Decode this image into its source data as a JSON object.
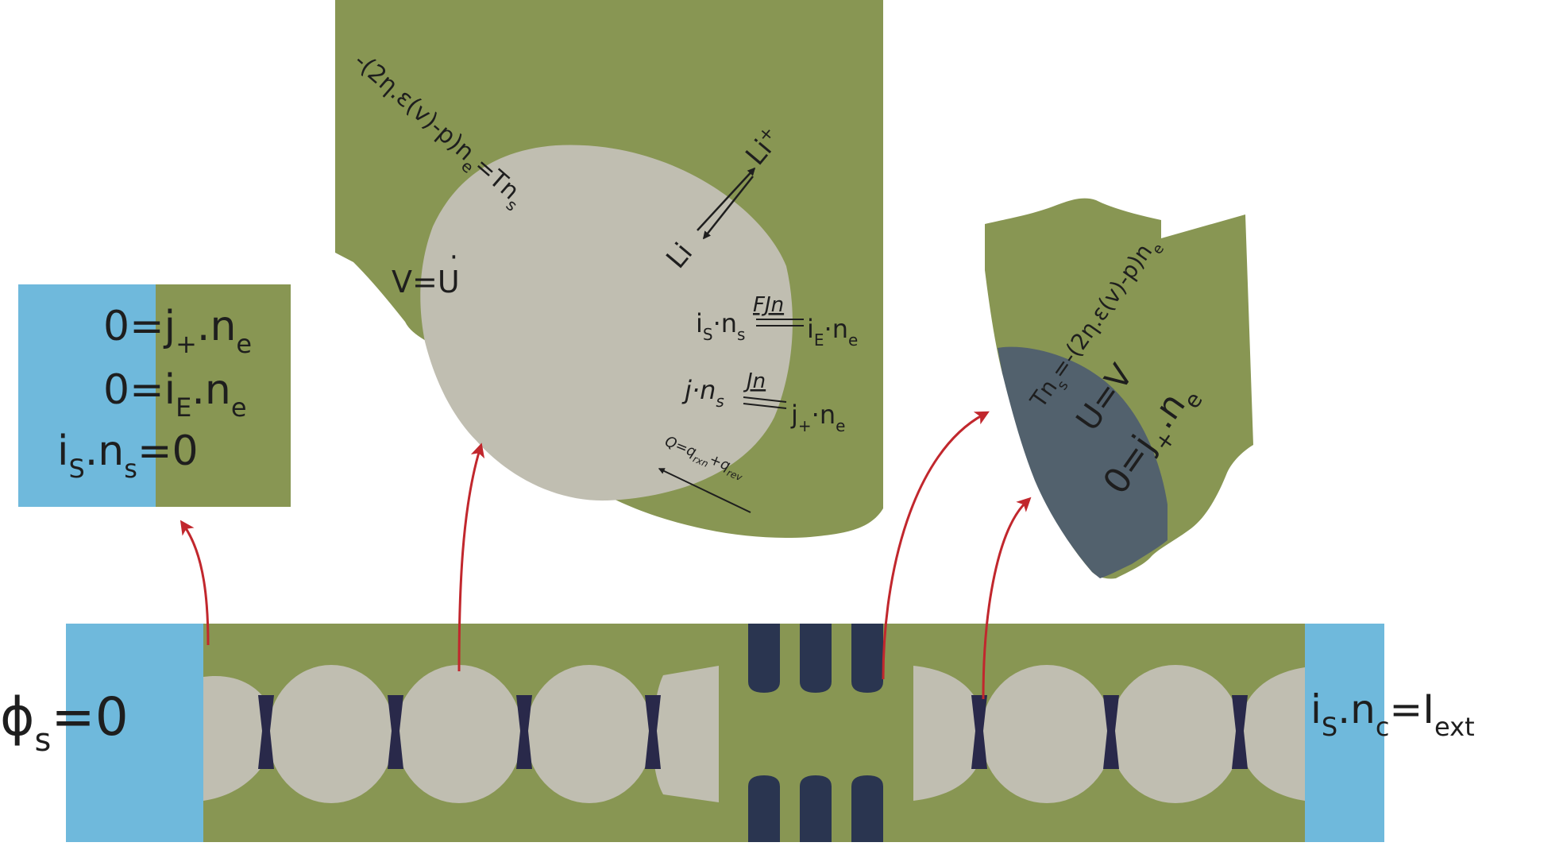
{
  "colors": {
    "green": "#889653",
    "cyan": "#6fb9dc",
    "particle": "#c0beb1",
    "separator": "#2a3550",
    "neck": "#29294a",
    "slate": "#52616d",
    "arrow_red": "#c1272d",
    "text": "#1e1e1e"
  },
  "anode_box": {
    "eq1_lhs": "0=j",
    "eq1_sub": "+",
    "eq1_rhs": ".n",
    "eq1_rsub": "e",
    "eq2_lhs": "0=i",
    "eq2_sub": "E",
    "eq2_rhs": ".n",
    "eq2_rsub": "e",
    "eq3_a": "i",
    "eq3_a_sub": "S",
    "eq3_b": ".n",
    "eq3_b_sub": "s",
    "eq3_c": "=0"
  },
  "particle_view": {
    "stress_bc": {
      "a": "-(2η.ε(v)-p)n",
      "a_sub": "e",
      "b": "=Tn",
      "b_sub": "s"
    },
    "velocity_bc": {
      "a": "V=U",
      "dot": "·"
    },
    "li_plus": {
      "a": "Li",
      "sup": "+"
    },
    "li": "Li",
    "current_bc": {
      "a": "i",
      "a_sub": "S",
      "b": "·n",
      "b_sub": "s",
      "over": "FJn",
      "c": "i",
      "c_sub": "E",
      "d": "·n",
      "d_sub": "e"
    },
    "flux_bc": {
      "a": "j·n",
      "a_sub": "s",
      "over": "Jn",
      "c": "j",
      "c_sub": "+",
      "d": "·n",
      "d_sub": "e"
    },
    "heat_bc": {
      "a": "Q=q",
      "a_sub": "rxn",
      "b": "+q",
      "b_sub": "rev"
    }
  },
  "separator_view": {
    "stress_bc": {
      "a": "Tn",
      "a_sub": "s",
      "b": "=-(2η.ε(v)-p)n",
      "b_sub": "e"
    },
    "velocity_bc": "U=V",
    "flux_bc": {
      "a": "0=j",
      "a_sub": "+",
      "b": ".n",
      "b_sub": "e"
    }
  },
  "cell": {
    "left_bc": {
      "a": "ϕ",
      "a_sub": "s",
      "b": "=0"
    },
    "right_bc": {
      "a": "i",
      "a_sub": "S",
      "b": ".n",
      "b_sub": "c",
      "c": "=I",
      "c_sub": "ext"
    }
  }
}
